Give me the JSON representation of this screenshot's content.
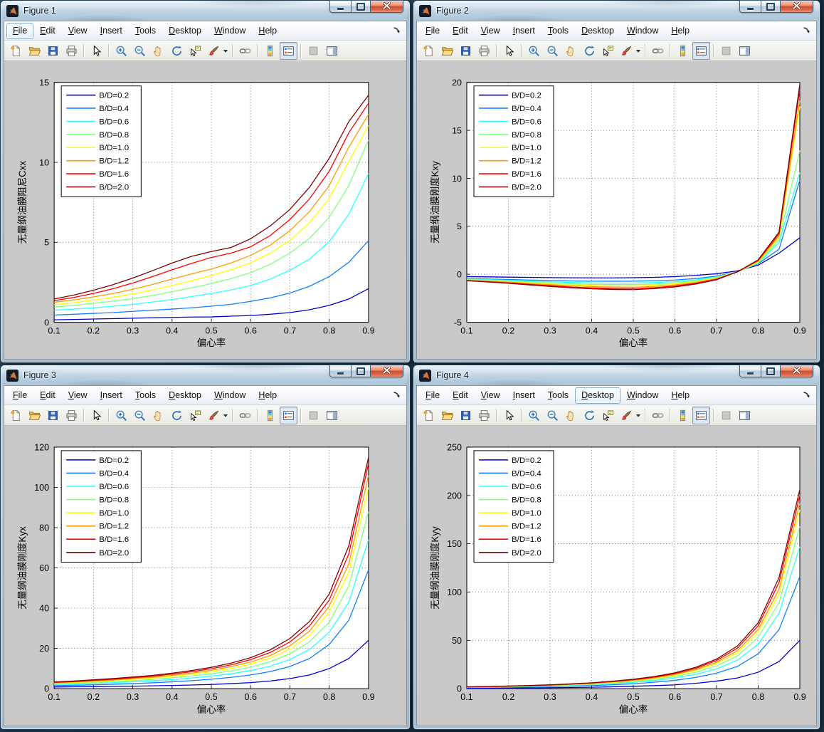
{
  "desktop": {
    "background": "#24445f"
  },
  "window_chrome": {
    "buttons": [
      {
        "name": "minimize"
      },
      {
        "name": "maximize"
      },
      {
        "name": "close"
      }
    ]
  },
  "menubar": {
    "items": [
      {
        "label": "File"
      },
      {
        "label": "Edit"
      },
      {
        "label": "View"
      },
      {
        "label": "Insert"
      },
      {
        "label": "Tools"
      },
      {
        "label": "Desktop"
      },
      {
        "label": "Window"
      },
      {
        "label": "Help"
      }
    ]
  },
  "toolbar": {
    "groups": [
      [
        "new-file",
        "open-file",
        "save-figure",
        "print-figure"
      ],
      [
        "arrow-cursor"
      ],
      [
        "zoom-in",
        "zoom-out",
        "pan-hand",
        "rotate-3d",
        "data-cursor",
        "brush-data"
      ],
      [
        "link-plots"
      ],
      [
        "insert-colorbar",
        "insert-legend"
      ],
      [
        "hide-plot-tools",
        "show-plot-tools"
      ]
    ],
    "pressed": [
      "insert-legend"
    ],
    "disabled": [
      "hide-plot-tools"
    ]
  },
  "figures": [
    {
      "title": "Figure 1",
      "focused_menu": "File",
      "chart_data": {
        "type": "line",
        "title": "",
        "xlabel": "偏心率",
        "ylabel": "无量纲油膜阻尼Cxx",
        "xlim": [
          0.1,
          0.9
        ],
        "ylim": [
          0,
          15
        ],
        "xticks": [
          "0.1",
          "0.2",
          "0.3",
          "0.4",
          "0.5",
          "0.6",
          "0.7",
          "0.8",
          "0.9"
        ],
        "yticks": [
          0,
          5,
          10,
          15
        ],
        "grid": true,
        "legend_position": "upper-left",
        "x": [
          0.1,
          0.15,
          0.2,
          0.25,
          0.3,
          0.35,
          0.4,
          0.45,
          0.5,
          0.55,
          0.6,
          0.65,
          0.7,
          0.75,
          0.8,
          0.85,
          0.9
        ],
        "series": [
          {
            "name": "B/D=0.2",
            "color": "#0000CC",
            "values": [
              0.15,
              0.17,
              0.2,
              0.22,
              0.25,
              0.28,
              0.3,
              0.32,
              0.33,
              0.38,
              0.42,
              0.5,
              0.6,
              0.78,
              1.05,
              1.45,
              2.1
            ]
          },
          {
            "name": "B/D=0.4",
            "color": "#0F7FFF",
            "values": [
              0.45,
              0.5,
              0.55,
              0.6,
              0.68,
              0.75,
              0.82,
              0.9,
              1.0,
              1.12,
              1.3,
              1.52,
              1.82,
              2.25,
              2.85,
              3.75,
              5.1
            ]
          },
          {
            "name": "B/D=0.6",
            "color": "#2EFFFF",
            "values": [
              0.75,
              0.82,
              0.9,
              1.0,
              1.12,
              1.26,
              1.42,
              1.6,
              1.8,
              2.02,
              2.3,
              2.7,
              3.25,
              3.95,
              5.05,
              6.75,
              9.3
            ]
          },
          {
            "name": "B/D=0.8",
            "color": "#80FF80",
            "values": [
              0.95,
              1.05,
              1.18,
              1.32,
              1.48,
              1.67,
              1.9,
              2.15,
              2.42,
              2.72,
              3.1,
              3.62,
              4.32,
              5.25,
              6.55,
              8.55,
              11.4
            ]
          },
          {
            "name": "B/D=1.0",
            "color": "#FFFF00",
            "values": [
              1.1,
              1.22,
              1.38,
              1.56,
              1.77,
              2.02,
              2.3,
              2.6,
              2.92,
              3.28,
              3.72,
              4.32,
              5.12,
              6.22,
              7.75,
              10.05,
              12.3
            ]
          },
          {
            "name": "B/D=1.2",
            "color": "#FF9900",
            "values": [
              1.25,
              1.4,
              1.58,
              1.8,
              2.06,
              2.36,
              2.7,
              3.02,
              3.32,
              3.7,
              4.18,
              4.82,
              5.72,
              6.92,
              8.55,
              10.95,
              13.0
            ]
          },
          {
            "name": "B/D=1.6",
            "color": "#FF0000",
            "values": [
              1.35,
              1.55,
              1.8,
              2.1,
              2.45,
              2.85,
              3.28,
              3.68,
              4.05,
              4.32,
              4.72,
              5.42,
              6.42,
              7.72,
              9.45,
              11.85,
              13.7
            ]
          },
          {
            "name": "B/D=2.0",
            "color": "#800000",
            "values": [
              1.45,
              1.7,
              2.0,
              2.35,
              2.76,
              3.22,
              3.7,
              4.12,
              4.42,
              4.67,
              5.22,
              6.02,
              7.05,
              8.45,
              10.25,
              12.55,
              14.2
            ]
          }
        ]
      }
    },
    {
      "title": "Figure 2",
      "focused_menu": null,
      "chart_data": {
        "type": "line",
        "title": "",
        "xlabel": "偏心率",
        "ylabel": "无量纲油膜刚度Kxy",
        "xlim": [
          0.1,
          0.9
        ],
        "ylim": [
          -5,
          20
        ],
        "xticks": [
          "0.1",
          "0.2",
          "0.3",
          "0.4",
          "0.5",
          "0.6",
          "0.7",
          "0.8",
          "0.9"
        ],
        "yticks": [
          -5,
          0,
          5,
          10,
          15,
          20
        ],
        "grid": true,
        "legend_position": "upper-left",
        "x": [
          0.1,
          0.15,
          0.2,
          0.25,
          0.3,
          0.35,
          0.4,
          0.45,
          0.5,
          0.55,
          0.6,
          0.65,
          0.7,
          0.75,
          0.8,
          0.85,
          0.9
        ],
        "series": [
          {
            "name": "B/D=0.2",
            "color": "#0000CC",
            "values": [
              -0.25,
              -0.27,
              -0.3,
              -0.32,
              -0.35,
              -0.37,
              -0.38,
              -0.38,
              -0.36,
              -0.32,
              -0.25,
              -0.12,
              0.05,
              0.35,
              0.95,
              2.2,
              3.8
            ]
          },
          {
            "name": "B/D=0.4",
            "color": "#0F7FFF",
            "values": [
              -0.45,
              -0.5,
              -0.55,
              -0.6,
              -0.65,
              -0.7,
              -0.72,
              -0.73,
              -0.72,
              -0.68,
              -0.6,
              -0.45,
              -0.2,
              0.25,
              1.1,
              2.6,
              9.8
            ]
          },
          {
            "name": "B/D=0.6",
            "color": "#2EFFFF",
            "values": [
              -0.5,
              -0.56,
              -0.63,
              -0.7,
              -0.78,
              -0.85,
              -0.9,
              -0.92,
              -0.92,
              -0.87,
              -0.77,
              -0.58,
              -0.28,
              0.25,
              1.15,
              3.3,
              10.6
            ]
          },
          {
            "name": "B/D=0.8",
            "color": "#80FF80",
            "values": [
              -0.55,
              -0.62,
              -0.71,
              -0.8,
              -0.9,
              -0.99,
              -1.05,
              -1.08,
              -1.08,
              -1.02,
              -0.9,
              -0.68,
              -0.34,
              0.25,
              1.2,
              3.6,
              12.9
            ]
          },
          {
            "name": "B/D=1.0",
            "color": "#FFFF00",
            "values": [
              -0.6,
              -0.68,
              -0.78,
              -0.89,
              -1.0,
              -1.1,
              -1.17,
              -1.21,
              -1.22,
              -1.15,
              -1.0,
              -0.76,
              -0.4,
              0.25,
              1.3,
              3.8,
              17.5
            ]
          },
          {
            "name": "B/D=1.2",
            "color": "#FF9900",
            "values": [
              -0.62,
              -0.72,
              -0.83,
              -0.96,
              -1.09,
              -1.2,
              -1.29,
              -1.34,
              -1.35,
              -1.27,
              -1.11,
              -0.85,
              -0.46,
              0.25,
              1.35,
              4.0,
              18.1
            ]
          },
          {
            "name": "B/D=1.6",
            "color": "#FF0000",
            "values": [
              -0.65,
              -0.77,
              -0.9,
              -1.05,
              -1.19,
              -1.32,
              -1.42,
              -1.48,
              -1.49,
              -1.4,
              -1.23,
              -0.94,
              -0.52,
              0.25,
              1.45,
              4.2,
              19.3
            ]
          },
          {
            "name": "B/D=2.0",
            "color": "#800000",
            "values": [
              -0.68,
              -0.81,
              -0.95,
              -1.11,
              -1.27,
              -1.41,
              -1.52,
              -1.58,
              -1.6,
              -1.5,
              -1.32,
              -1.02,
              -0.57,
              0.25,
              1.5,
              4.4,
              19.8
            ]
          }
        ]
      }
    },
    {
      "title": "Figure 3",
      "focused_menu": null,
      "chart_data": {
        "type": "line",
        "title": "",
        "xlabel": "偏心率",
        "ylabel": "无量纲油膜刚度Kyx",
        "xlim": [
          0.1,
          0.9
        ],
        "ylim": [
          0,
          120
        ],
        "xticks": [
          "0.1",
          "0.2",
          "0.3",
          "0.4",
          "0.5",
          "0.6",
          "0.7",
          "0.8",
          "0.9"
        ],
        "yticks": [
          0,
          20,
          40,
          60,
          80,
          100,
          120
        ],
        "grid": true,
        "legend_position": "upper-left",
        "x": [
          0.1,
          0.15,
          0.2,
          0.25,
          0.3,
          0.35,
          0.4,
          0.45,
          0.5,
          0.55,
          0.6,
          0.65,
          0.7,
          0.75,
          0.8,
          0.85,
          0.9
        ],
        "series": [
          {
            "name": "B/D=0.2",
            "color": "#0000CC",
            "values": [
              0.8,
              0.9,
              1.0,
              1.1,
              1.2,
              1.4,
              1.6,
              1.8,
              2.1,
              2.5,
              3.0,
              3.8,
              5.0,
              6.8,
              10,
              15,
              24
            ]
          },
          {
            "name": "B/D=0.4",
            "color": "#0F7FFF",
            "values": [
              1.5,
              1.7,
              1.9,
              2.2,
              2.5,
              2.9,
              3.4,
              4.0,
              4.7,
              5.6,
              6.8,
              8.5,
              11,
              15,
              22,
              34,
              59
            ]
          },
          {
            "name": "B/D=0.6",
            "color": "#2EFFFF",
            "values": [
              2.0,
              2.3,
              2.6,
              3.0,
              3.4,
              3.9,
              4.5,
              5.3,
              6.2,
              7.4,
              9.0,
              11.2,
              14.5,
              19.5,
              28,
              43,
              74
            ]
          },
          {
            "name": "B/D=0.8",
            "color": "#80FF80",
            "values": [
              2.4,
              2.7,
              3.1,
              3.5,
              4.0,
              4.6,
              5.4,
              6.3,
              7.4,
              8.8,
              10.7,
              13.4,
              17.3,
              23.3,
              33,
              51,
              88
            ]
          },
          {
            "name": "B/D=1.0",
            "color": "#FFFF00",
            "values": [
              2.7,
              3.0,
              3.5,
              4.0,
              4.6,
              5.3,
              6.1,
              7.1,
              8.4,
              10.0,
              12.2,
              15.2,
              19.6,
              26.4,
              38,
              58,
              100
            ]
          },
          {
            "name": "B/D=1.2",
            "color": "#FF9900",
            "values": [
              2.9,
              3.3,
              3.8,
              4.3,
              5.0,
              5.7,
              6.6,
              7.7,
              9.1,
              10.9,
              13.2,
              16.5,
              21.3,
              28.6,
              41,
              62,
              106
            ]
          },
          {
            "name": "B/D=1.6",
            "color": "#FF0000",
            "values": [
              3.1,
              3.5,
              4.1,
              4.7,
              5.4,
              6.2,
              7.2,
              8.4,
              9.9,
              11.8,
              14.4,
              18.0,
              23.2,
              31.2,
              44,
              67,
              112
            ]
          },
          {
            "name": "B/D=2.0",
            "color": "#800000",
            "values": [
              3.3,
              3.8,
              4.4,
              5.0,
              5.8,
              6.6,
              7.7,
              9.0,
              10.6,
              12.7,
              15.4,
              19.3,
              24.9,
              33.4,
              47,
              71,
              115
            ]
          }
        ]
      }
    },
    {
      "title": "Figure 4",
      "focused_menu": "Desktop",
      "chart_data": {
        "type": "line",
        "title": "",
        "xlabel": "偏心率",
        "ylabel": "无量纲油膜刚度Kyy",
        "xlim": [
          0.1,
          0.9
        ],
        "ylim": [
          0,
          250
        ],
        "xticks": [
          "0.1",
          "0.2",
          "0.3",
          "0.4",
          "0.5",
          "0.6",
          "0.7",
          "0.8",
          "0.9"
        ],
        "yticks": [
          0,
          50,
          100,
          150,
          200,
          250
        ],
        "grid": true,
        "legend_position": "upper-left",
        "x": [
          0.1,
          0.15,
          0.2,
          0.25,
          0.3,
          0.35,
          0.4,
          0.45,
          0.5,
          0.55,
          0.6,
          0.65,
          0.7,
          0.75,
          0.8,
          0.85,
          0.9
        ],
        "series": [
          {
            "name": "B/D=0.2",
            "color": "#0000CC",
            "values": [
              0.5,
              0.6,
              0.7,
              0.8,
              1.0,
              1.2,
              1.5,
              1.9,
              2.4,
              3.1,
              4.0,
              5.5,
              7.8,
              11,
              17,
              28,
              50
            ]
          },
          {
            "name": "B/D=0.4",
            "color": "#0F7FFF",
            "values": [
              1.0,
              1.2,
              1.4,
              1.7,
              2.1,
              2.6,
              3.2,
              4.0,
              5.1,
              6.6,
              8.6,
              11.6,
              16,
              23,
              36,
              61,
              116
            ]
          },
          {
            "name": "B/D=0.6",
            "color": "#2EFFFF",
            "values": [
              1.3,
              1.5,
              1.8,
              2.2,
              2.7,
              3.3,
              4.1,
              5.1,
              6.5,
              8.4,
              11.0,
              14.8,
              20.5,
              29.5,
              46,
              78,
              147
            ]
          },
          {
            "name": "B/D=0.8",
            "color": "#80FF80",
            "values": [
              1.5,
              1.8,
              2.1,
              2.6,
              3.1,
              3.8,
              4.7,
              5.9,
              7.5,
              9.6,
              12.6,
              17.0,
              23.5,
              33.8,
              53,
              89,
              168
            ]
          },
          {
            "name": "B/D=1.0",
            "color": "#FFFF00",
            "values": [
              1.6,
              1.9,
              2.3,
              2.8,
              3.4,
              4.2,
              5.2,
              6.5,
              8.3,
              10.6,
              13.9,
              18.7,
              25.9,
              37.3,
              58,
              98,
              185
            ]
          },
          {
            "name": "B/D=1.2",
            "color": "#FF9900",
            "values": [
              1.7,
              2.0,
              2.4,
              2.9,
              3.6,
              4.4,
              5.5,
              6.9,
              8.7,
              11.2,
              14.6,
              19.7,
              27.3,
              39.3,
              61,
              103,
              192
            ]
          },
          {
            "name": "B/D=1.6",
            "color": "#FF0000",
            "values": [
              1.8,
              2.1,
              2.6,
              3.1,
              3.8,
              4.7,
              5.8,
              7.3,
              9.3,
              11.9,
              15.6,
              21.0,
              29.1,
              41.9,
              65,
              110,
              200
            ]
          },
          {
            "name": "B/D=2.0",
            "color": "#800000",
            "values": [
              1.9,
              2.2,
              2.7,
              3.3,
              4.0,
              4.9,
              6.1,
              7.7,
              9.8,
              12.5,
              16.4,
              22.1,
              30.6,
              44.1,
              68,
              115,
              206
            ]
          }
        ]
      }
    }
  ]
}
